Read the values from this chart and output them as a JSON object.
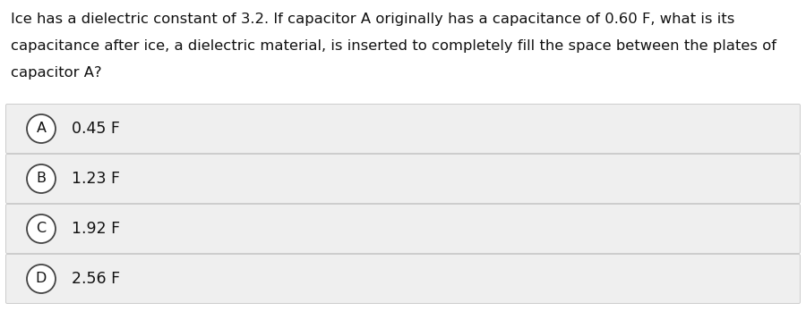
{
  "question_line1": "Ice has a dielectric constant of 3.2. If capacitor A originally has a capacitance of 0.60 F, what is its",
  "question_line2": "capacitance after ice, a dielectric material, is inserted to completely fill the space between the plates of",
  "question_line3": "capacitor A?",
  "options": [
    {
      "label": "A",
      "text": "0.45 F"
    },
    {
      "label": "B",
      "text": "1.23 F"
    },
    {
      "label": "C",
      "text": "1.92 F"
    },
    {
      "label": "D",
      "text": "2.56 F"
    }
  ],
  "bg_color": "#ffffff",
  "option_bg_color": "#efefef",
  "option_border_color": "#cccccc",
  "text_color": "#111111",
  "circle_edge_color": "#444444",
  "circle_face_color": "#ffffff",
  "question_fontsize": 11.8,
  "option_fontsize": 12.5,
  "label_fontsize": 11.5,
  "fig_width": 9.0,
  "fig_height": 3.67,
  "dpi": 100
}
